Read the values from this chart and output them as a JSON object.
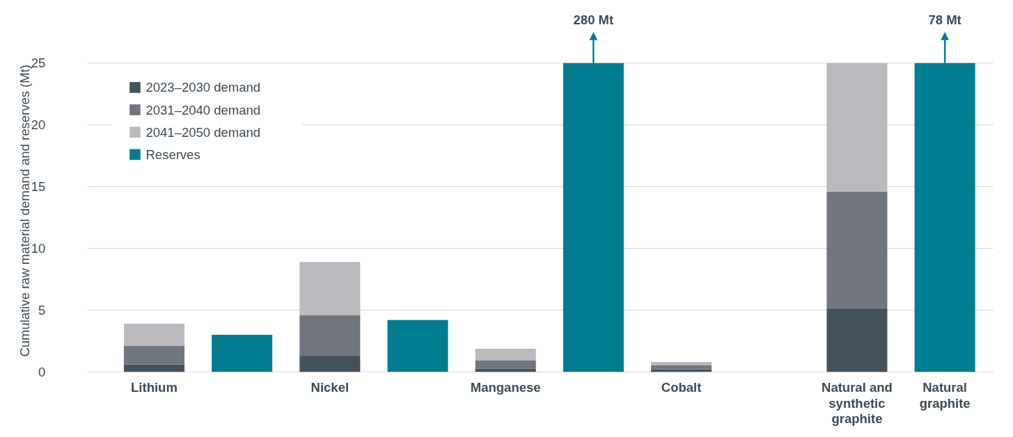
{
  "chart_data": {
    "type": "bar",
    "stacked": true,
    "ylabel": "Cumulative raw material demand and reserves (Mt)",
    "categories": [
      "Lithium",
      null,
      "Nickel",
      null,
      "Manganese",
      null,
      "Cobalt",
      null,
      "Natural and synthetic graphite",
      "Natural graphite"
    ],
    "series": [
      {
        "name": "2023–2030 demand",
        "color": "#44525c",
        "values": [
          0.6,
          null,
          1.3,
          null,
          0.27,
          null,
          0.2,
          null,
          5.15,
          null
        ]
      },
      {
        "name": "2031–2040 demand",
        "color": "#71757d",
        "values": [
          1.5,
          null,
          3.3,
          null,
          0.65,
          null,
          0.35,
          null,
          9.45,
          null
        ]
      },
      {
        "name": "2041–2050 demand",
        "color": "#b9b9be",
        "values": [
          1.8,
          null,
          4.3,
          null,
          0.95,
          null,
          0.25,
          null,
          10.4,
          null
        ]
      },
      {
        "name": "Reserves",
        "color": "#007d91",
        "values": [
          null,
          3.0,
          null,
          4.2,
          null,
          25,
          null,
          null,
          null,
          25
        ]
      }
    ],
    "ylim": [
      0,
      25
    ],
    "yticks": [
      0,
      5,
      10,
      15,
      20,
      25
    ],
    "grid": "y",
    "legend": "top left",
    "annotations": [
      "280 Mt",
      "78 Mt"
    ]
  }
}
